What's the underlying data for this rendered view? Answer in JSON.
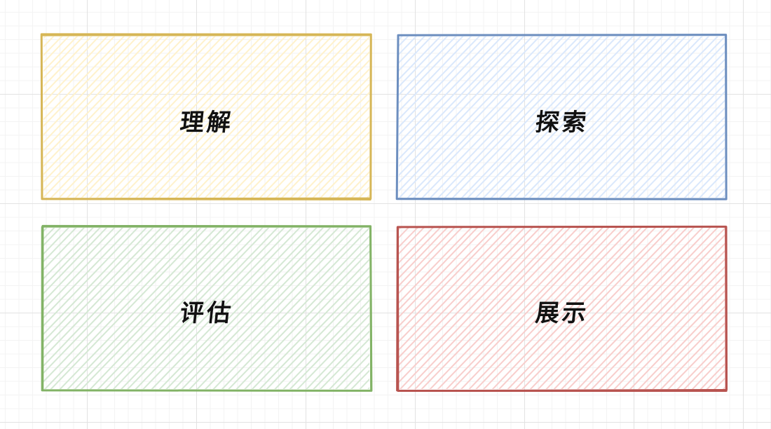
{
  "diagram": {
    "boxes": [
      {
        "label": "理解",
        "stroke_color": "#d6b656",
        "fill_color": "#fff2cc"
      },
      {
        "label": "探索",
        "stroke_color": "#6c8ebf",
        "fill_color": "#dae8fc"
      },
      {
        "label": "评估",
        "stroke_color": "#82b366",
        "fill_color": "#d5e8d4"
      },
      {
        "label": "展示",
        "stroke_color": "#b85450",
        "fill_color": "#f8cecc"
      }
    ]
  }
}
